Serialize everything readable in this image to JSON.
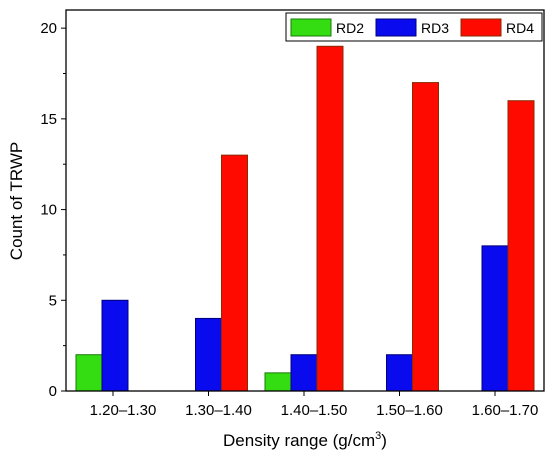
{
  "chart_data": {
    "type": "bar",
    "categories": [
      "1.20–1.30",
      "1.30–1.40",
      "1.40–1.50",
      "1.50–1.60",
      "1.60–1.70"
    ],
    "series": [
      {
        "name": "RD2",
        "values": [
          2,
          0,
          1,
          0,
          0
        ],
        "color": "#33dd11",
        "edge": "#1a7a0a"
      },
      {
        "name": "RD3",
        "values": [
          5,
          4,
          2,
          2,
          8
        ],
        "color": "#0a0aee",
        "edge": "#00007a"
      },
      {
        "name": "RD4",
        "values": [
          0,
          13,
          19,
          17,
          16
        ],
        "color": "#ff0a00",
        "edge": "#8a2a00"
      }
    ],
    "xlabel_main": "Density range (g/cm",
    "xlabel_sup": "3",
    "xlabel_end": ")",
    "ylabel": "Count of TRWP",
    "ylim": [
      0,
      21
    ],
    "yticks": [
      0,
      5,
      10,
      15,
      20
    ],
    "legend_position": "top-right",
    "grid": false
  }
}
